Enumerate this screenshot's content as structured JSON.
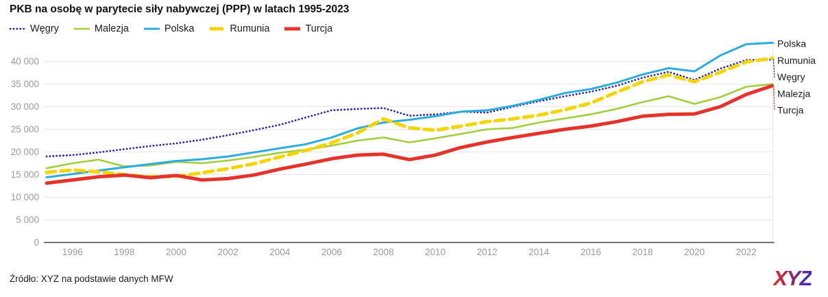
{
  "title": "PKB na osobę w parytecie siły nabywczej (PPP) w latach 1995-2023",
  "source": "Źródło: XYZ na podstawie danych MFW",
  "logo_text": "XYZ",
  "colors": {
    "title_text": "#111111",
    "tick_text": "#9a9a9a",
    "gridline": "#e7e7e7",
    "axis_line": "#3f3f3f",
    "logo_gradient_start": "#e02b20",
    "logo_gradient_end": "#2d2db5"
  },
  "chart_data": {
    "type": "line",
    "title": "PKB na osobę w parytecie siły nabywczej (PPP) w latach 1995-2023",
    "xlabel": "",
    "ylabel": "",
    "x_range": [
      1995,
      2023
    ],
    "ylim": [
      0,
      45000
    ],
    "y_ticks": [
      0,
      5000,
      10000,
      15000,
      20000,
      25000,
      30000,
      35000,
      40000
    ],
    "x_tick_labels": [
      1996,
      1998,
      2000,
      2002,
      2004,
      2006,
      2008,
      2010,
      2012,
      2014,
      2016,
      2018,
      2020,
      2022
    ],
    "grid": true,
    "legend_position": "top-left",
    "right_label_order": [
      "Polska",
      "Rumunia",
      "Węgry",
      "Malezja",
      "Turcja"
    ],
    "x": [
      1995,
      1996,
      1997,
      1998,
      1999,
      2000,
      2001,
      2002,
      2003,
      2004,
      2005,
      2006,
      2007,
      2008,
      2009,
      2010,
      2011,
      2012,
      2013,
      2014,
      2015,
      2016,
      2017,
      2018,
      2019,
      2020,
      2021,
      2022,
      2023
    ],
    "series": [
      {
        "name": "Węgry",
        "color": "#2424bb",
        "style": "dotted",
        "width": 2.8,
        "values": [
          19000,
          19300,
          19900,
          20600,
          21300,
          21900,
          22700,
          23700,
          24800,
          26000,
          27600,
          29200,
          29500,
          29700,
          28000,
          28300,
          28900,
          28700,
          30000,
          31200,
          32300,
          33300,
          34600,
          36400,
          37700,
          35900,
          38400,
          40300,
          40400
        ]
      },
      {
        "name": "Malezja",
        "color": "#a2ce39",
        "style": "solid",
        "width": 2.6,
        "values": [
          16400,
          17500,
          18300,
          16800,
          17000,
          17800,
          17500,
          18100,
          18900,
          19800,
          20500,
          21400,
          22500,
          23200,
          22100,
          23000,
          24000,
          25000,
          25300,
          26500,
          27400,
          28300,
          29500,
          31000,
          32300,
          30600,
          32100,
          34400,
          35000
        ]
      },
      {
        "name": "Polska",
        "color": "#2aabe2",
        "style": "solid",
        "width": 3,
        "values": [
          14400,
          15100,
          15900,
          16600,
          17300,
          18000,
          18400,
          19000,
          19900,
          20800,
          21700,
          23200,
          25200,
          26500,
          27100,
          27900,
          28900,
          29200,
          30200,
          31500,
          33000,
          33900,
          35300,
          37100,
          38500,
          37800,
          41300,
          43800,
          44100
        ]
      },
      {
        "name": "Rumunia",
        "color": "#f5d400",
        "style": "dashed",
        "width": 5,
        "values": [
          15500,
          16000,
          15600,
          15000,
          14500,
          14600,
          15400,
          16300,
          17400,
          18900,
          20300,
          22000,
          24200,
          27300,
          25300,
          24800,
          25700,
          26700,
          27300,
          28100,
          29300,
          30800,
          33200,
          35500,
          37000,
          35500,
          37600,
          39900,
          40700
        ]
      },
      {
        "name": "Turcja",
        "color": "#e6332a",
        "style": "solid",
        "width": 5,
        "values": [
          13100,
          13800,
          14500,
          14900,
          14300,
          14800,
          13800,
          14100,
          14900,
          16200,
          17300,
          18500,
          19300,
          19500,
          18300,
          19300,
          21000,
          22200,
          23200,
          24100,
          25000,
          25700,
          26700,
          27900,
          28300,
          28400,
          30000,
          32700,
          34600
        ]
      }
    ]
  }
}
